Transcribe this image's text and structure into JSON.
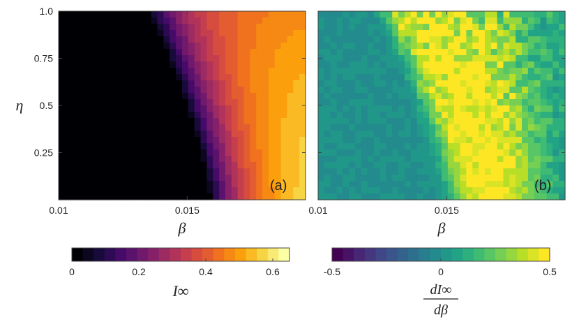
{
  "chart_data": [
    {
      "type": "heatmap",
      "panel_label": "(a)",
      "xlabel": "β",
      "ylabel": "η",
      "xlim": [
        0.01,
        0.0196
      ],
      "ylim": [
        0.0,
        1.0
      ],
      "xticks": [
        0.01,
        0.015
      ],
      "xtick_labels": [
        "0.01",
        "0.015"
      ],
      "yticks": [
        0.25,
        0.5,
        0.75,
        1.0
      ],
      "ytick_labels": [
        "0.25",
        "0.5",
        "0.75",
        "1.0"
      ],
      "grid": false,
      "colormap": "inferno",
      "colorbar": {
        "label": "I∞",
        "range": [
          0,
          0.65
        ],
        "ticks": [
          0,
          0.2,
          0.4,
          0.6
        ],
        "tick_labels": [
          "0",
          "0.2",
          "0.4",
          "0.6"
        ],
        "steps": 20
      },
      "grid_size": {
        "cols": 40,
        "rows": 30
      },
      "description_of_field": "I∞ is ~0 for low β; a transition front runs from β≈0.0157 at η=0 up to β≈0.0133 at η=1; above the front I∞ rises to ~0.65 at high β / low η"
    },
    {
      "type": "heatmap",
      "panel_label": "(b)",
      "xlabel": "β",
      "xlim": [
        0.01,
        0.0196
      ],
      "ylim": [
        0.0,
        1.0
      ],
      "xticks": [
        0.01,
        0.015
      ],
      "xtick_labels": [
        "0.01",
        "0.015"
      ],
      "yticks": [
        0.25,
        0.5,
        0.75,
        1.0
      ],
      "ytick_labels": [
        "",
        "",
        "",
        ""
      ],
      "grid": false,
      "colormap": "viridis",
      "colorbar": {
        "label_numerator": "dI∞",
        "label_denominator": "dβ",
        "range": [
          -0.5,
          0.5
        ],
        "ticks": [
          -0.5,
          0,
          0.5
        ],
        "tick_labels": [
          "-0.5",
          "0",
          "0.5"
        ],
        "steps": 20
      },
      "grid_size": {
        "cols": 40,
        "rows": 30
      },
      "description_of_field": "dI∞/dβ ≈ 0 (teal) away from the transition; a bright yellow band (≈0.5) follows the transition front, broadening and becoming noisy toward η=1"
    }
  ]
}
